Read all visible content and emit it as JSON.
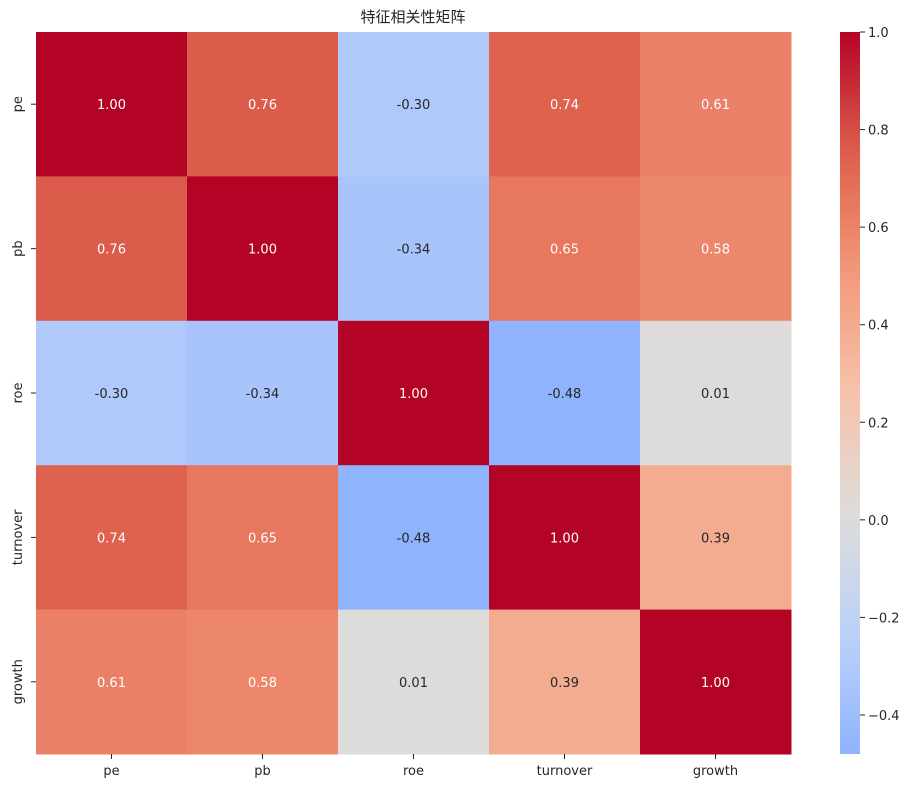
{
  "chart_data": {
    "type": "heatmap",
    "title": "特征相关性矩阵",
    "xlabel": "",
    "ylabel": "",
    "row_labels": [
      "pe",
      "pb",
      "roe",
      "turnover",
      "growth"
    ],
    "col_labels": [
      "pe",
      "pb",
      "roe",
      "turnover",
      "growth"
    ],
    "values": [
      [
        1.0,
        0.76,
        -0.3,
        0.74,
        0.61
      ],
      [
        0.76,
        1.0,
        -0.34,
        0.65,
        0.58
      ],
      [
        -0.3,
        -0.34,
        1.0,
        -0.48,
        0.01
      ],
      [
        0.74,
        0.65,
        -0.48,
        1.0,
        0.39
      ],
      [
        0.61,
        0.58,
        0.01,
        0.39,
        1.0
      ]
    ],
    "annotations": [
      [
        "1.00",
        "0.76",
        "-0.30",
        "0.74",
        "0.61"
      ],
      [
        "0.76",
        "1.00",
        "-0.34",
        "0.65",
        "0.58"
      ],
      [
        "-0.30",
        "-0.34",
        "1.00",
        "-0.48",
        "0.01"
      ],
      [
        "0.74",
        "0.65",
        "-0.48",
        "1.00",
        "0.39"
      ],
      [
        "0.61",
        "0.58",
        "0.01",
        "0.39",
        "1.00"
      ]
    ],
    "colormap": "coolwarm",
    "center": 0,
    "vmin": -0.48,
    "vmax": 1.0,
    "colorbar_ticks": [
      1.0,
      0.8,
      0.6,
      0.4,
      0.2,
      0.0,
      -0.2,
      -0.4
    ],
    "colorbar_tick_labels": [
      "1.0",
      "0.8",
      "0.6",
      "0.4",
      "0.2",
      "0.0",
      "−0.2",
      "−0.4"
    ],
    "colors": {
      "low": "#3b4cc0",
      "mid": "#dddcdc",
      "high": "#b40426",
      "text": "#262626",
      "text_on_dark": "#ffffff"
    }
  }
}
